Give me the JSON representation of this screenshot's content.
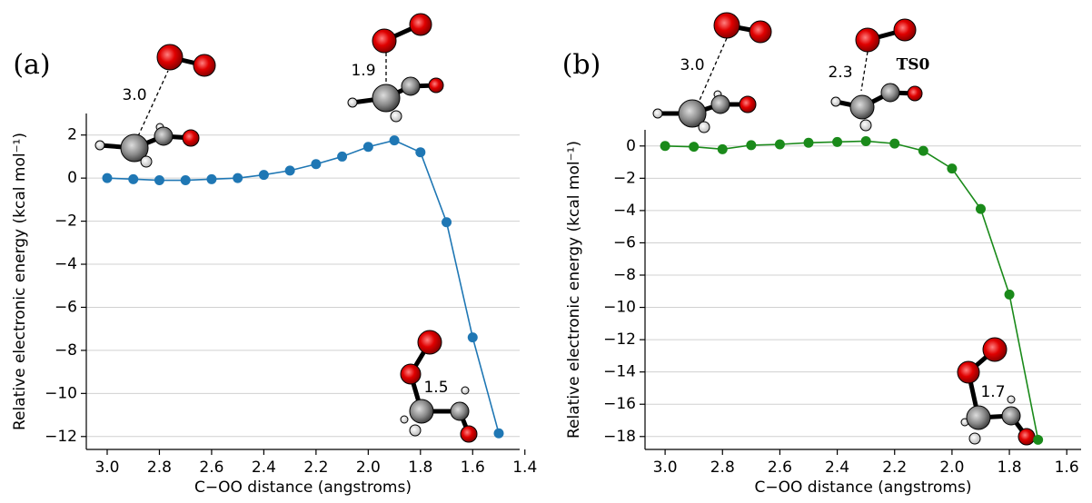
{
  "chart_data": [
    {
      "type": "line",
      "panel_label": "(a)",
      "x_label": "C−OO distance (angstroms)",
      "y_label": "Relative electronic energy (kcal mol⁻¹)",
      "x": [
        3.0,
        2.9,
        2.8,
        2.7,
        2.6,
        2.5,
        2.4,
        2.3,
        2.2,
        2.1,
        2.0,
        1.9,
        1.8,
        1.7,
        1.6,
        1.5
      ],
      "values": [
        0,
        -0.05,
        -0.1,
        -0.1,
        -0.05,
        0,
        0.15,
        0.35,
        0.65,
        1.0,
        1.45,
        1.75,
        1.2,
        -2.05,
        -7.4,
        -11.85
      ],
      "color": "#1f77b4",
      "xlim": [
        3.08,
        1.42
      ],
      "ylim": [
        -12.6,
        3.0
      ],
      "xticks": [
        {
          "value": 3.0,
          "label": "3.0"
        },
        {
          "value": 2.8,
          "label": "2.8"
        },
        {
          "value": 2.6,
          "label": "2.6"
        },
        {
          "value": 2.4,
          "label": "2.4"
        },
        {
          "value": 2.2,
          "label": "2.2"
        },
        {
          "value": 2.0,
          "label": "2.0"
        },
        {
          "value": 1.8,
          "label": "1.8"
        },
        {
          "value": 1.6,
          "label": "1.6"
        },
        {
          "value": 1.4,
          "label": "1.4"
        }
      ],
      "yticks": [
        2,
        0,
        {
          "value": -2,
          "label": "−2"
        },
        {
          "value": -4,
          "label": "−4"
        },
        {
          "value": -6,
          "label": "−6"
        },
        {
          "value": -8,
          "label": "−8"
        },
        {
          "value": -10,
          "label": "−10"
        },
        {
          "value": -12,
          "label": "−12"
        }
      ],
      "grid": true,
      "annotations": [
        "3.0",
        "1.9",
        "1.5"
      ]
    },
    {
      "type": "line",
      "panel_label": "(b)",
      "x_label": "C−OO distance (angstroms)",
      "y_label": "Relative electronic energy (kcal mol⁻¹)",
      "x": [
        3.0,
        2.9,
        2.8,
        2.7,
        2.6,
        2.5,
        2.4,
        2.3,
        2.2,
        2.1,
        2.0,
        1.9,
        1.8,
        1.7
      ],
      "values": [
        0,
        -0.05,
        -0.2,
        0.05,
        0.1,
        0.2,
        0.25,
        0.3,
        0.15,
        -0.3,
        -1.4,
        -3.9,
        -9.2,
        -18.2
      ],
      "color": "#1a8a1a",
      "xlim": [
        3.07,
        1.55
      ],
      "ylim": [
        -18.8,
        1.0
      ],
      "xticks": [
        {
          "value": 3.0,
          "label": "3.0"
        },
        {
          "value": 2.8,
          "label": "2.8"
        },
        {
          "value": 2.6,
          "label": "2.6"
        },
        {
          "value": 2.4,
          "label": "2.4"
        },
        {
          "value": 2.2,
          "label": "2.2"
        },
        {
          "value": 2.0,
          "label": "2.0"
        },
        {
          "value": 1.8,
          "label": "1.8"
        },
        {
          "value": 1.6,
          "label": "1.6"
        }
      ],
      "yticks": [
        0,
        {
          "value": -2,
          "label": "−2"
        },
        {
          "value": -4,
          "label": "−4"
        },
        {
          "value": -6,
          "label": "−6"
        },
        {
          "value": -8,
          "label": "−8"
        },
        {
          "value": -10,
          "label": "−10"
        },
        {
          "value": -12,
          "label": "−12"
        },
        {
          "value": -14,
          "label": "−14"
        },
        {
          "value": -16,
          "label": "−16"
        },
        {
          "value": -18,
          "label": "−18"
        }
      ],
      "grid": true,
      "annotations": [
        "3.0",
        "2.3",
        "TS0",
        "1.7"
      ]
    }
  ]
}
